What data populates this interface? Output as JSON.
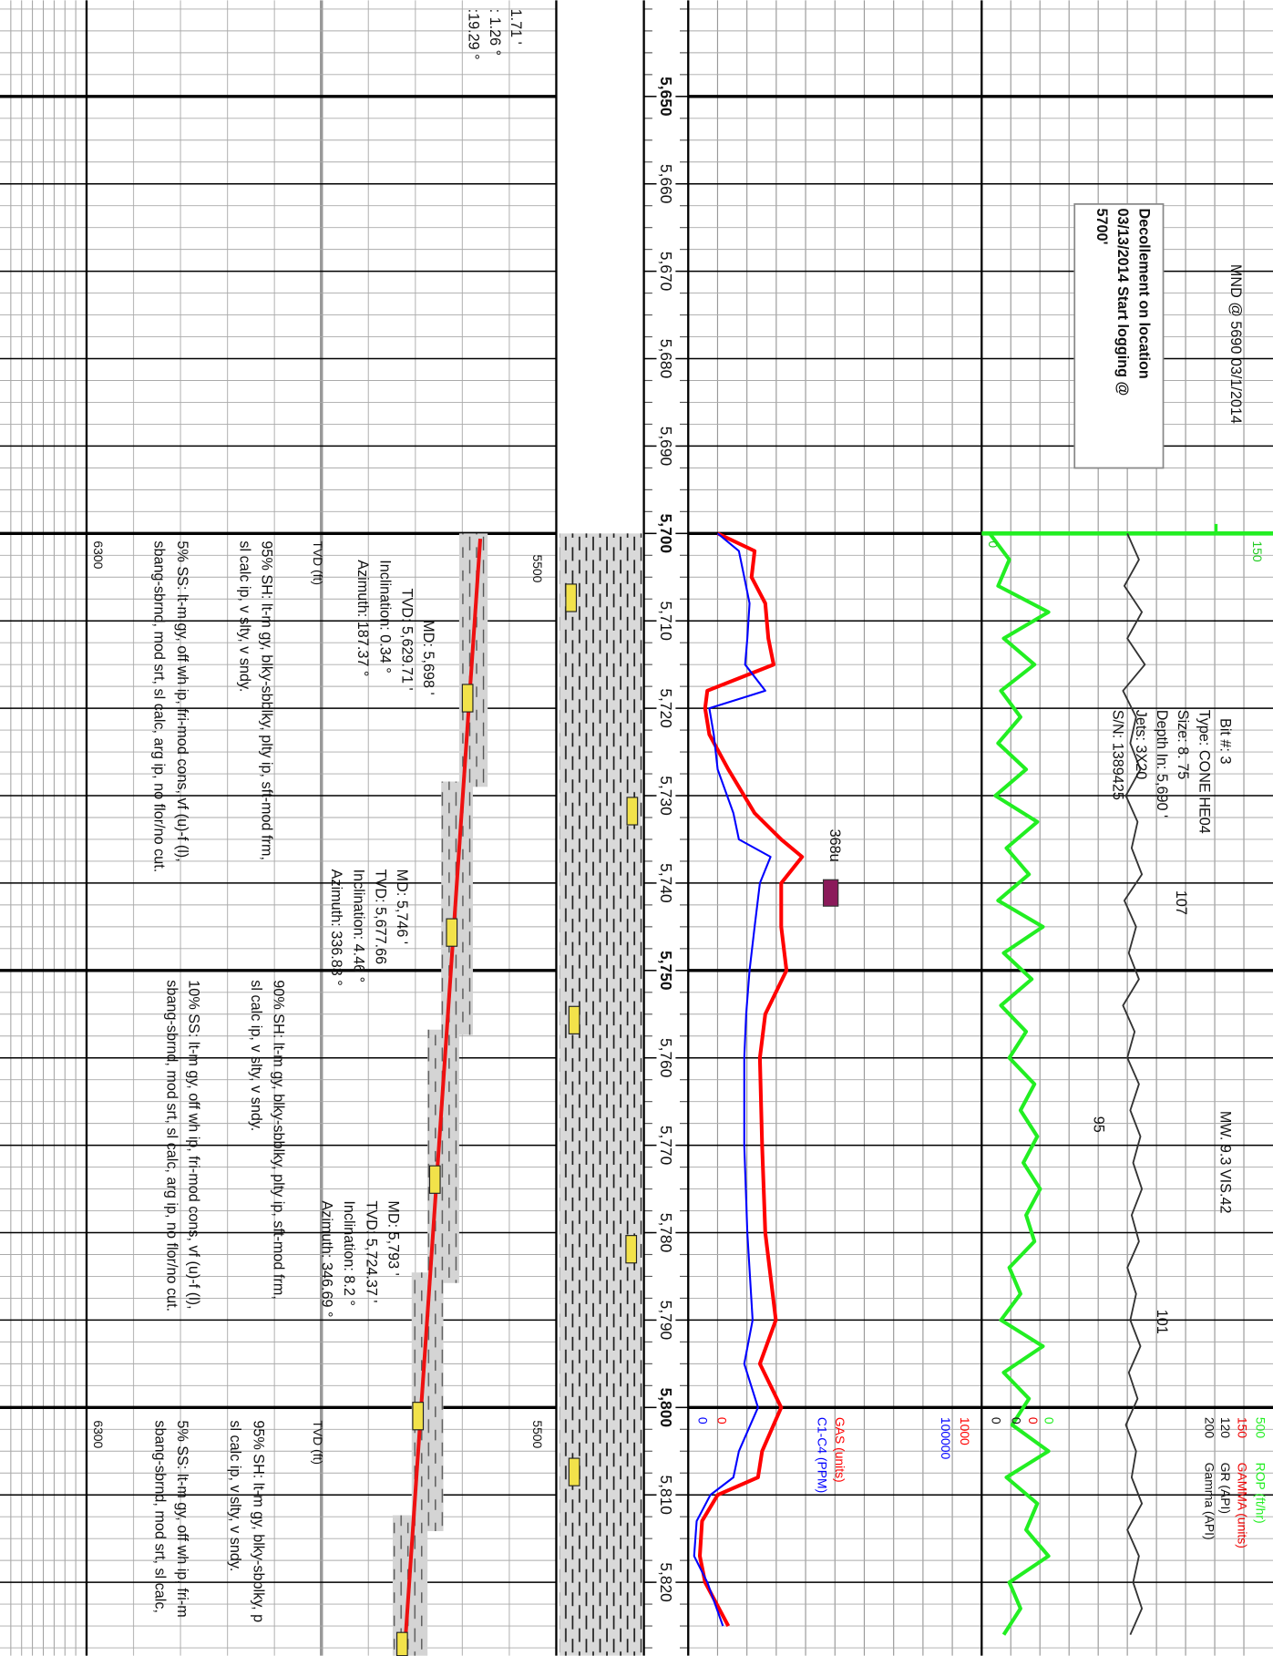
{
  "chart_data": {
    "type": "well-log",
    "depth_range": [
      5639,
      5828.4
    ],
    "depth_ticks": [
      {
        "value": 5650,
        "label": "5,650"
      },
      {
        "value": 5660,
        "label": "5,660"
      },
      {
        "value": 5670,
        "label": "5,670"
      },
      {
        "value": 5680,
        "label": "5,680"
      },
      {
        "value": 5690,
        "label": "5,690"
      },
      {
        "value": 5700,
        "label": "5,700"
      },
      {
        "value": 5710,
        "label": "5,710"
      },
      {
        "value": 5720,
        "label": "5,720"
      },
      {
        "value": 5730,
        "label": "5,730"
      },
      {
        "value": 5740,
        "label": "5,740"
      },
      {
        "value": 5750,
        "label": "5,750"
      },
      {
        "value": 5760,
        "label": "5,760"
      },
      {
        "value": 5770,
        "label": "5,770"
      },
      {
        "value": 5780,
        "label": "5,780"
      },
      {
        "value": 5790,
        "label": "5,790"
      },
      {
        "value": 5800,
        "label": "5,800"
      },
      {
        "value": 5810,
        "label": "5,810"
      },
      {
        "value": 5820,
        "label": "5,820"
      }
    ],
    "series": [
      {
        "name": "GAS (units)",
        "color": "#ff0000",
        "xlim": [
          0,
          1000
        ],
        "depth": [
          5700,
          5702,
          5705,
          5708,
          5712,
          5715,
          5718,
          5720,
          5723,
          5727,
          5732,
          5735,
          5737,
          5740,
          5745,
          5750,
          5755,
          5760,
          5770,
          5780,
          5790,
          5795,
          5800,
          5805,
          5808,
          5810,
          5813,
          5817,
          5820,
          5825
        ],
        "values": [
          94,
          226,
          215,
          264,
          275,
          294,
          57,
          49,
          64,
          132,
          226,
          321,
          396,
          321,
          321,
          340,
          264,
          245,
          253,
          264,
          302,
          245,
          321,
          253,
          238,
          94,
          38,
          30,
          49,
          132
        ]
      },
      {
        "name": "C1-C4 (PPM)",
        "color": "#0000ff",
        "xlim": [
          0,
          100000
        ],
        "depth": [
          5700,
          5702,
          5705,
          5708,
          5712,
          5715,
          5718,
          5720,
          5723,
          5727,
          5732,
          5735,
          5737,
          5740,
          5745,
          5750,
          5755,
          5760,
          5770,
          5780,
          5790,
          5795,
          5800,
          5805,
          5808,
          5810,
          5813,
          5817,
          5820,
          5825
        ],
        "values": [
          9400,
          17000,
          18900,
          20800,
          20000,
          19200,
          26400,
          6400,
          8000,
          9400,
          15000,
          17000,
          28300,
          24500,
          22600,
          20800,
          19600,
          18900,
          18900,
          20000,
          21900,
          18900,
          23800,
          17000,
          15000,
          6800,
          1900,
          1000,
          5700,
          11300
        ]
      },
      {
        "name": "ROP (ft/hr)",
        "color": "#22ee22",
        "xlim": [
          0,
          500
        ],
        "depth": [
          5700,
          5703,
          5706,
          5709,
          5712,
          5715,
          5718,
          5721,
          5724,
          5727,
          5730,
          5733,
          5736,
          5739,
          5742,
          5745,
          5748,
          5751,
          5754,
          5757,
          5760,
          5763,
          5766,
          5769,
          5772,
          5775,
          5778,
          5781,
          5784,
          5787,
          5790,
          5793,
          5796,
          5799,
          5802,
          5805,
          5808,
          5811,
          5814,
          5817,
          5820,
          5823,
          5826
        ],
        "values": [
          5,
          40,
          20,
          110,
          30,
          85,
          25,
          60,
          20,
          70,
          15,
          90,
          35,
          75,
          20,
          100,
          30,
          80,
          25,
          70,
          40,
          85,
          60,
          90,
          65,
          95,
          70,
          85,
          40,
          60,
          25,
          100,
          30,
          75,
          45,
          110,
          35,
          90,
          70,
          110,
          40,
          60,
          30
        ]
      },
      {
        "name": "GR (API)",
        "color": "#333333",
        "xlim": [
          0,
          200
        ],
        "depth": [
          5700,
          5703,
          5706,
          5709,
          5712,
          5715,
          5718,
          5721,
          5724,
          5727,
          5730,
          5733,
          5736,
          5739,
          5742,
          5745,
          5748,
          5751,
          5754,
          5757,
          5760,
          5763,
          5766,
          5769,
          5772,
          5775,
          5778,
          5781,
          5784,
          5787,
          5790,
          5793,
          5796,
          5799,
          5802,
          5805,
          5808,
          5811,
          5814,
          5817,
          5820,
          5823,
          5826
        ],
        "values": [
          100,
          108,
          98,
          110,
          100,
          112,
          97,
          106,
          102,
          109,
          99,
          107,
          103,
          110,
          98,
          106,
          101,
          108,
          97,
          105,
          100,
          108,
          102,
          109,
          104,
          110,
          103,
          108,
          100,
          106,
          102,
          109,
          101,
          107,
          99,
          106,
          103,
          110,
          100,
          108,
          104,
          110,
          102
        ]
      }
    ],
    "headers": [
      "150",
      "120",
      "GAMMA (units)",
      "Gamma (API)",
      "0",
      "0",
      "150",
      "0"
    ],
    "annotations": [
      "1.71 '",
      ": 1.26  °",
      ":19.29  °",
      "MD: 5,698 '",
      "TVD: 5,629.71 '",
      "Inclination: 0.34  °",
      "Azimuth: 187.37  °",
      "TVD (ft)",
      "5500",
      "6300",
      "95% SH: lt-m gy, blky-sbblky, plty ip, sft-mod frm,",
      "sl calc ip, v slty, v sndy.",
      "5% SS: lt-m gy, off wh ip, fri-mod cons, vf (u)-f (l),",
      "sbang-sbrnd, mod srt, sl calc, arg ip, no flor/no cut.",
      "MD: 5,746 '",
      "TVD: 5,677.66 '",
      "Inclination: 4.46  °",
      "Azimuth: 336.83  °",
      "90% SH: lt-m gy, blky-sbblky, plty ip, sft-mod frm,",
      "sl calc ip, v slty, v sndy.",
      "10% SS: lt-m gy, off wh ip, fri-mod cons, vf (u)-f (l),",
      "sbang-sbrnd, mod srt, sl calc, arg ip, no flor/no cut.",
      "MD: 5,793 '",
      "TVD: 5,724.37 '",
      "Inclination: 8.2  °",
      "Azimuth: 346.69  °",
      "TVD (ft)",
      "5500",
      "6300",
      "95% SH: lt-m gy, blky-sbblky, p",
      "sl calc ip, v slty, v sndy.",
      "5% SS: lt-m gy, off wh ip, fri-m",
      "sbang-sbrnd, mod srt, sl calc,",
      "MND @ 5690 03/1/2014",
      "Decollement on location",
      "03/13/2014 Start logging @",
      "5700'",
      "Bit #: 3",
      "Type: CONE HE04",
      "Size: 8. 75",
      "Depth In: 5,690 '",
      "Jets: 3X20",
      "S/N: 1389425",
      "MW. 9.3 VIS.42",
      "368u",
      "107",
      "95",
      "101"
    ]
  }
}
